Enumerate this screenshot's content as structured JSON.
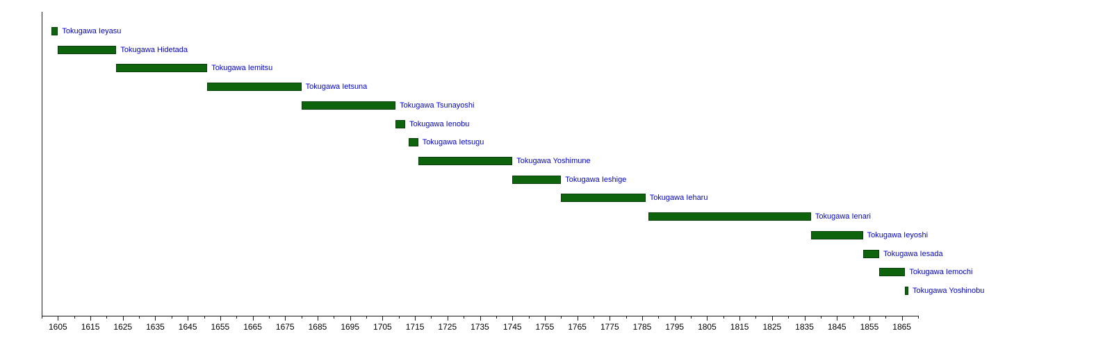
{
  "chart_data": {
    "type": "bar",
    "subtype": "timeline-gantt",
    "title": "",
    "xlabel": "",
    "ylabel": "",
    "xlim": [
      1600,
      1870
    ],
    "grid": false,
    "legend": "none",
    "x_major_tick_labels": [
      "1605",
      "1615",
      "1625",
      "1635",
      "1645",
      "1655",
      "1665",
      "1675",
      "1685",
      "1695",
      "1705",
      "1715",
      "1725",
      "1735",
      "1745",
      "1755",
      "1765",
      "1775",
      "1785",
      "1795",
      "1805",
      "1815",
      "1825",
      "1835",
      "1845",
      "1855",
      "1865"
    ],
    "x_major_ticks": [
      1605,
      1615,
      1625,
      1635,
      1645,
      1655,
      1665,
      1675,
      1685,
      1695,
      1705,
      1715,
      1725,
      1735,
      1745,
      1755,
      1765,
      1775,
      1785,
      1795,
      1805,
      1815,
      1825,
      1835,
      1845,
      1855,
      1865
    ],
    "x_minor_ticks": [
      1600,
      1610,
      1620,
      1630,
      1640,
      1650,
      1660,
      1670,
      1680,
      1690,
      1700,
      1710,
      1720,
      1730,
      1740,
      1750,
      1760,
      1770,
      1780,
      1790,
      1800,
      1810,
      1820,
      1830,
      1840,
      1850,
      1860,
      1870
    ],
    "series": [
      {
        "name": "Tokugawa Ieyasu",
        "start": 1603,
        "end": 1605
      },
      {
        "name": "Tokugawa Hidetada",
        "start": 1605,
        "end": 1623
      },
      {
        "name": "Tokugawa Iemitsu",
        "start": 1623,
        "end": 1651
      },
      {
        "name": "Tokugawa Ietsuna",
        "start": 1651,
        "end": 1680
      },
      {
        "name": "Tokugawa Tsunayoshi",
        "start": 1680,
        "end": 1709
      },
      {
        "name": "Tokugawa Ienobu",
        "start": 1709,
        "end": 1712
      },
      {
        "name": "Tokugawa Ietsugu",
        "start": 1713,
        "end": 1716
      },
      {
        "name": "Tokugawa Yoshimune",
        "start": 1716,
        "end": 1745
      },
      {
        "name": "Tokugawa Ieshige",
        "start": 1745,
        "end": 1760
      },
      {
        "name": "Tokugawa Ieharu",
        "start": 1760,
        "end": 1786
      },
      {
        "name": "Tokugawa Ienari",
        "start": 1787,
        "end": 1837
      },
      {
        "name": "Tokugawa Ieyoshi",
        "start": 1837,
        "end": 1853
      },
      {
        "name": "Tokugawa Iesada",
        "start": 1853,
        "end": 1858
      },
      {
        "name": "Tokugawa Iemochi",
        "start": 1858,
        "end": 1866
      },
      {
        "name": "Tokugawa Yoshinobu",
        "start": 1866,
        "end": 1867
      }
    ],
    "colors": {
      "bar_fill": "#0d640d",
      "bar_border": "#093f09",
      "bar_label": "#0000cc",
      "axis": "#1a1a1a",
      "tick_label": "#000000",
      "background": "#ffffff"
    }
  }
}
